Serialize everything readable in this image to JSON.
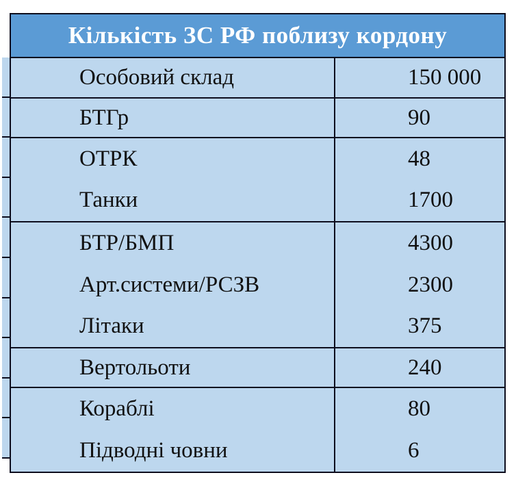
{
  "table": {
    "title": "Кількість ЗС РФ поблизу кордону",
    "sections": [
      {
        "rows": [
          {
            "label": "Особовий склад",
            "value": "150 000"
          }
        ]
      },
      {
        "rows": [
          {
            "label": "БТГр",
            "value": "90"
          }
        ]
      },
      {
        "rows": [
          {
            "label": "ОТРК",
            "value": "48"
          },
          {
            "label": "Танки",
            "value": "1700"
          }
        ]
      },
      {
        "rows": [
          {
            "label": "БТР/БМП",
            "value": "4300"
          },
          {
            "label": "Арт.системи/РСЗВ",
            "value": "2300"
          },
          {
            "label": "Літаки",
            "value": "375"
          }
        ]
      },
      {
        "rows": [
          {
            "label": "Вертольоти",
            "value": "240"
          }
        ]
      },
      {
        "rows": [
          {
            "label": "Кораблі",
            "value": "80"
          },
          {
            "label": "Підводні човни",
            "value": "6"
          }
        ]
      }
    ],
    "colors": {
      "header_bg": "#5b9bd5",
      "header_text": "#ffffff",
      "cell_bg": "#bdd7ee",
      "border": "#0d0d1d",
      "cell_text": "#111111"
    }
  }
}
